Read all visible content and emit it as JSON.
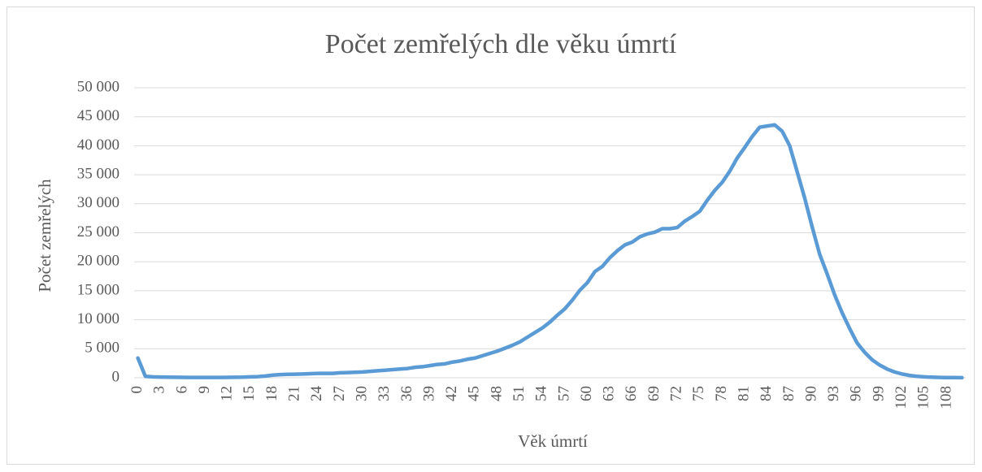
{
  "chart_data": {
    "type": "line",
    "title": "Počet zemřelých dle věku úmrtí",
    "x_label": "Věk úmrtí",
    "y_label": "Počet zemřelých",
    "categories": [
      0,
      null,
      null,
      3,
      null,
      null,
      6,
      null,
      null,
      9,
      null,
      null,
      12,
      null,
      null,
      15,
      null,
      null,
      18,
      null,
      null,
      21,
      null,
      null,
      24,
      null,
      null,
      27,
      null,
      null,
      30,
      null,
      null,
      33,
      null,
      null,
      36,
      null,
      null,
      39,
      null,
      null,
      42,
      null,
      null,
      45,
      null,
      null,
      48,
      null,
      null,
      51,
      null,
      null,
      54,
      null,
      null,
      57,
      null,
      null,
      60,
      null,
      null,
      63,
      null,
      null,
      66,
      null,
      null,
      69,
      null,
      null,
      72,
      null,
      null,
      75,
      null,
      null,
      78,
      null,
      null,
      81,
      null,
      null,
      84,
      null,
      null,
      87,
      null,
      null,
      90,
      null,
      null,
      93,
      null,
      null,
      96,
      null,
      null,
      99,
      null,
      null,
      102,
      null,
      null,
      105,
      null,
      null,
      108,
      null,
      null
    ],
    "series": [
      {
        "name": "Počet zemřelých",
        "color": "#5b9bd5",
        "values": [
          3400,
          250,
          150,
          120,
          100,
          80,
          70,
          60,
          60,
          60,
          60,
          60,
          70,
          80,
          100,
          150,
          200,
          300,
          450,
          550,
          600,
          620,
          650,
          700,
          750,
          750,
          750,
          850,
          900,
          950,
          1000,
          1100,
          1200,
          1300,
          1400,
          1500,
          1600,
          1800,
          1900,
          2100,
          2300,
          2400,
          2700,
          2900,
          3200,
          3400,
          3800,
          4200,
          4600,
          5100,
          5600,
          6200,
          7000,
          7800,
          8600,
          9600,
          10800,
          11900,
          13400,
          15100,
          16400,
          18300,
          19200,
          20700,
          21900,
          22900,
          23400,
          24300,
          24800,
          25100,
          25700,
          25700,
          25900,
          27000,
          27800,
          28700,
          30600,
          32300,
          33700,
          35600,
          37900,
          39700,
          41600,
          43200,
          43400,
          43600,
          42500,
          40000,
          35500,
          31000,
          26000,
          21300,
          17900,
          14300,
          11200,
          8500,
          6000,
          4400,
          3100,
          2200,
          1500,
          1000,
          650,
          400,
          250,
          150,
          100,
          60,
          40,
          30,
          20
        ]
      }
    ],
    "ylim": [
      0,
      50000
    ],
    "yticks": [
      0,
      {
        "value": 5000,
        "label": "5 000"
      },
      {
        "value": 10000,
        "label": "10 000"
      },
      {
        "value": 15000,
        "label": "15 000"
      },
      {
        "value": 20000,
        "label": "20 000"
      },
      {
        "value": 25000,
        "label": "25 000"
      },
      {
        "value": 30000,
        "label": "30 000"
      },
      {
        "value": 35000,
        "label": "35 000"
      },
      {
        "value": 40000,
        "label": "40 000"
      },
      {
        "value": 45000,
        "label": "45 000"
      },
      {
        "value": 50000,
        "label": "50 000"
      }
    ],
    "grid": true
  }
}
